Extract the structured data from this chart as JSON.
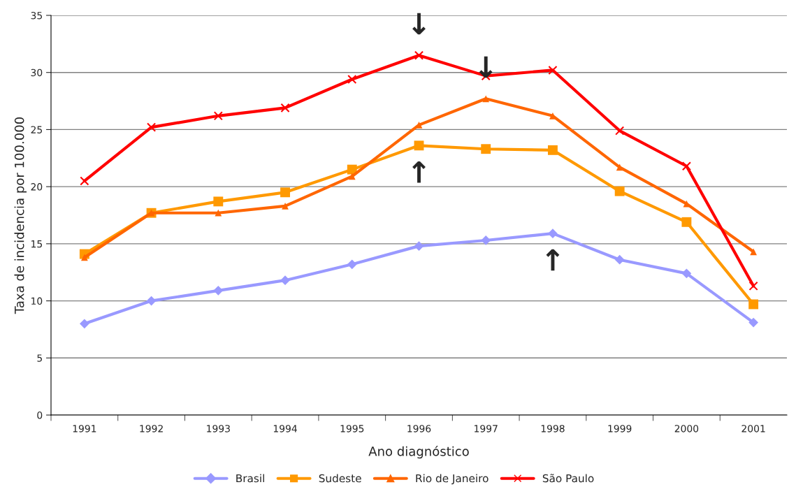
{
  "chart_data": {
    "type": "line",
    "xlabel": "Ano diagnóstico",
    "ylabel": "Taxa de incidencia por 100.000",
    "categories": [
      "1991",
      "1992",
      "1993",
      "1994",
      "1995",
      "1996",
      "1997",
      "1998",
      "1999",
      "2000",
      "2001"
    ],
    "series": [
      {
        "name": "Brasil",
        "color": "#9999ff",
        "marker": "diamond",
        "values": [
          8.0,
          10.0,
          10.9,
          11.8,
          13.2,
          14.8,
          15.3,
          15.9,
          13.6,
          12.4,
          8.1
        ]
      },
      {
        "name": "Sudeste",
        "color": "#ff9900",
        "marker": "square",
        "values": [
          14.1,
          17.7,
          18.7,
          19.5,
          21.5,
          23.6,
          23.3,
          23.2,
          19.6,
          16.9,
          9.7
        ]
      },
      {
        "name": "Rio de Janeiro",
        "color": "#ff6600",
        "marker": "triangle",
        "values": [
          13.8,
          17.7,
          17.7,
          18.3,
          20.9,
          25.4,
          27.7,
          26.2,
          21.7,
          18.5,
          14.3
        ]
      },
      {
        "name": "São Paulo",
        "color": "#ff0000",
        "marker": "cross",
        "values": [
          20.5,
          25.2,
          26.2,
          26.9,
          29.4,
          31.5,
          29.7,
          30.2,
          24.9,
          21.8,
          11.3
        ]
      }
    ],
    "annotations": [
      {
        "text": "↓",
        "x": "1996",
        "y": 31.5
      },
      {
        "text": "↓",
        "x": "1997",
        "y": 27.7
      },
      {
        "text": "↑",
        "x": "1996",
        "y": 23.6
      },
      {
        "text": "↑",
        "x": "1998",
        "y": 15.9
      }
    ],
    "ylim": [
      0,
      35
    ],
    "yticks": [
      0,
      5,
      10,
      15,
      20,
      25,
      30,
      35
    ],
    "grid": "y",
    "legend": "bottom"
  }
}
